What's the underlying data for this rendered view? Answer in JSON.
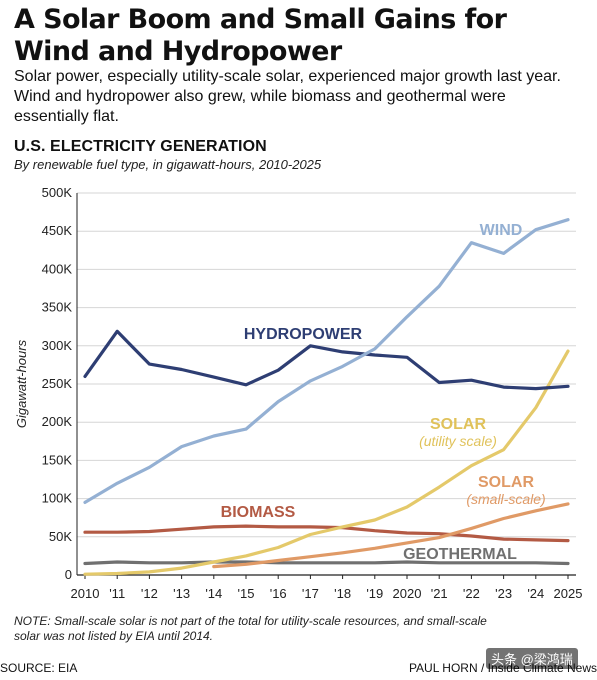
{
  "header": {
    "title": "A Solar Boom and Small Gains for Wind and Hydropower",
    "dek": "Solar power, especially utility-scale solar, experienced major growth last year. Wind and hydropower also grew, while biomass and geothermal were essentially flat."
  },
  "chart_heading": "U.S. ELECTRICITY GENERATION",
  "chart_subheading": "By renewable fuel type, in gigawatt-hours, 2010-2025",
  "footer": {
    "note": "NOTE: Small-scale solar is not part of the total for utility-scale resources, and small-scale solar was not listed by EIA until 2014.",
    "source": "SOURCE: EIA",
    "credit": "PAUL HORN / Inside Climate News",
    "watermark": "头条 @梁鸿瑞"
  },
  "chart_data": {
    "type": "line",
    "title": "U.S. ELECTRICITY GENERATION",
    "ylabel": "Gigawatt-hours",
    "xlabel": "",
    "x": [
      2010,
      2011,
      2012,
      2013,
      2014,
      2015,
      2016,
      2017,
      2018,
      2019,
      2020,
      2021,
      2022,
      2023,
      2024,
      2025
    ],
    "x_tick_labels": [
      "2010",
      "'11",
      "'12",
      "'13",
      "'14",
      "'15",
      "'16",
      "'17",
      "'18",
      "'19",
      "2020",
      "'21",
      "'22",
      "'23",
      "'24",
      "2025"
    ],
    "ylim": [
      0,
      500000
    ],
    "y_ticks": [
      0,
      50000,
      100000,
      150000,
      200000,
      250000,
      300000,
      350000,
      400000,
      450000,
      500000
    ],
    "y_tick_labels": [
      "0",
      "50K",
      "100K",
      "150K",
      "200K",
      "250K",
      "300K",
      "350K",
      "400K",
      "450K",
      "500K"
    ],
    "grid": true,
    "series": [
      {
        "name": "WIND",
        "color": "#94b0d3",
        "x": [
          2010,
          2011,
          2012,
          2013,
          2014,
          2015,
          2016,
          2017,
          2018,
          2019,
          2020,
          2021,
          2022,
          2023,
          2024,
          2025
        ],
        "values": [
          95000,
          120000,
          141000,
          168000,
          182000,
          191000,
          227000,
          254000,
          273000,
          296000,
          338000,
          378000,
          435000,
          421000,
          452000,
          465000
        ]
      },
      {
        "name": "HYDROPOWER",
        "color": "#2e3e73",
        "x": [
          2010,
          2011,
          2012,
          2013,
          2014,
          2015,
          2016,
          2017,
          2018,
          2019,
          2020,
          2021,
          2022,
          2023,
          2024,
          2025
        ],
        "values": [
          260000,
          319000,
          276000,
          269000,
          259000,
          249000,
          268000,
          300000,
          292000,
          288000,
          285000,
          252000,
          255000,
          246000,
          244000,
          247000
        ]
      },
      {
        "name": "SOLAR",
        "sublabel": "(utility scale)",
        "color": "#e4c96a",
        "x": [
          2010,
          2011,
          2012,
          2013,
          2014,
          2015,
          2016,
          2017,
          2018,
          2019,
          2020,
          2021,
          2022,
          2023,
          2024,
          2025
        ],
        "values": [
          1000,
          2000,
          4000,
          9000,
          17000,
          25000,
          36000,
          53000,
          63000,
          72000,
          89000,
          115000,
          143000,
          164000,
          219000,
          293000
        ]
      },
      {
        "name": "SOLAR",
        "sublabel": "(small-scale)",
        "color": "#e09a66",
        "x": [
          2014,
          2015,
          2016,
          2017,
          2018,
          2019,
          2020,
          2021,
          2022,
          2023,
          2024,
          2025
        ],
        "values": [
          11000,
          14000,
          19000,
          24000,
          29000,
          35000,
          42000,
          49000,
          61000,
          74000,
          84000,
          93000
        ]
      },
      {
        "name": "BIOMASS",
        "color": "#b35a44",
        "x": [
          2010,
          2011,
          2012,
          2013,
          2014,
          2015,
          2016,
          2017,
          2018,
          2019,
          2020,
          2021,
          2022,
          2023,
          2024,
          2025
        ],
        "values": [
          56000,
          56000,
          57000,
          60000,
          63000,
          64000,
          63000,
          63000,
          62000,
          58000,
          55000,
          54000,
          51000,
          47000,
          46000,
          45000
        ]
      },
      {
        "name": "GEOTHERMAL",
        "color": "#707070",
        "x": [
          2010,
          2011,
          2012,
          2013,
          2014,
          2015,
          2016,
          2017,
          2018,
          2019,
          2020,
          2021,
          2022,
          2023,
          2024,
          2025
        ],
        "values": [
          15000,
          17000,
          16000,
          16000,
          17000,
          17000,
          16000,
          16000,
          16000,
          16000,
          17000,
          16000,
          16000,
          16000,
          16000,
          15000
        ]
      }
    ]
  }
}
